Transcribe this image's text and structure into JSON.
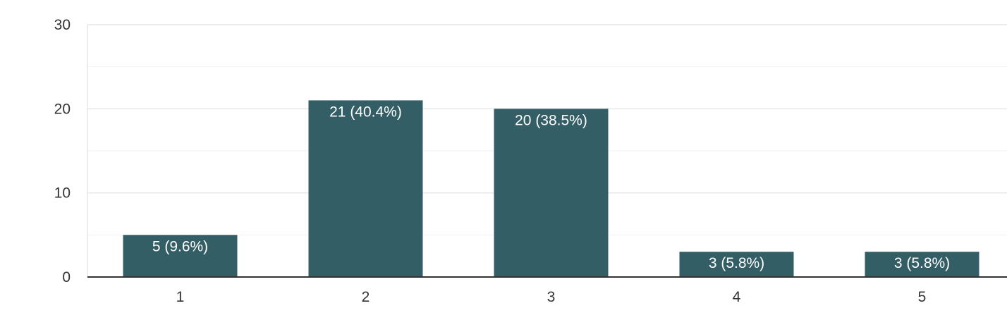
{
  "chart_data": {
    "type": "bar",
    "categories": [
      "1",
      "2",
      "3",
      "4",
      "5"
    ],
    "values": [
      5,
      21,
      20,
      3,
      3
    ],
    "data_labels": [
      "5 (9.6%)",
      "21 (40.4%)",
      "20 (38.5%)",
      "3 (5.8%)",
      "3 (5.8%)"
    ],
    "y_ticks": [
      "0",
      "10",
      "20",
      "30"
    ],
    "ylim": [
      0,
      30
    ],
    "minor_gridlines": [
      5,
      15,
      25
    ],
    "grid": true,
    "legend": "none",
    "title": "",
    "xlabel": "",
    "ylabel": "",
    "colors": {
      "bar": "#345e66",
      "label": "#ffffff",
      "tick_text": "#333333"
    }
  }
}
